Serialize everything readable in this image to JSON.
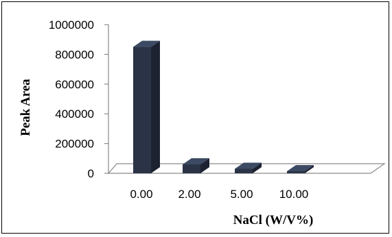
{
  "chart_data": {
    "type": "bar",
    "style": "3d-column",
    "title": "",
    "xlabel": "NaCl (W/V%)",
    "ylabel": "Peak Area",
    "categories": [
      "0.00",
      "2.00",
      "5.00",
      "10.00"
    ],
    "values": [
      850000,
      60000,
      30000,
      5000
    ],
    "ylim": [
      0,
      1000000
    ],
    "yticks": [
      "0",
      "200000",
      "400000",
      "600000",
      "800000",
      "1000000"
    ],
    "grid": false,
    "legend": "none",
    "colors": {
      "bar_front": "#2b3446",
      "bar_side": "#1c2230",
      "bar_top": "#3c4a63",
      "floor_stroke": "#8a8a8a"
    }
  }
}
